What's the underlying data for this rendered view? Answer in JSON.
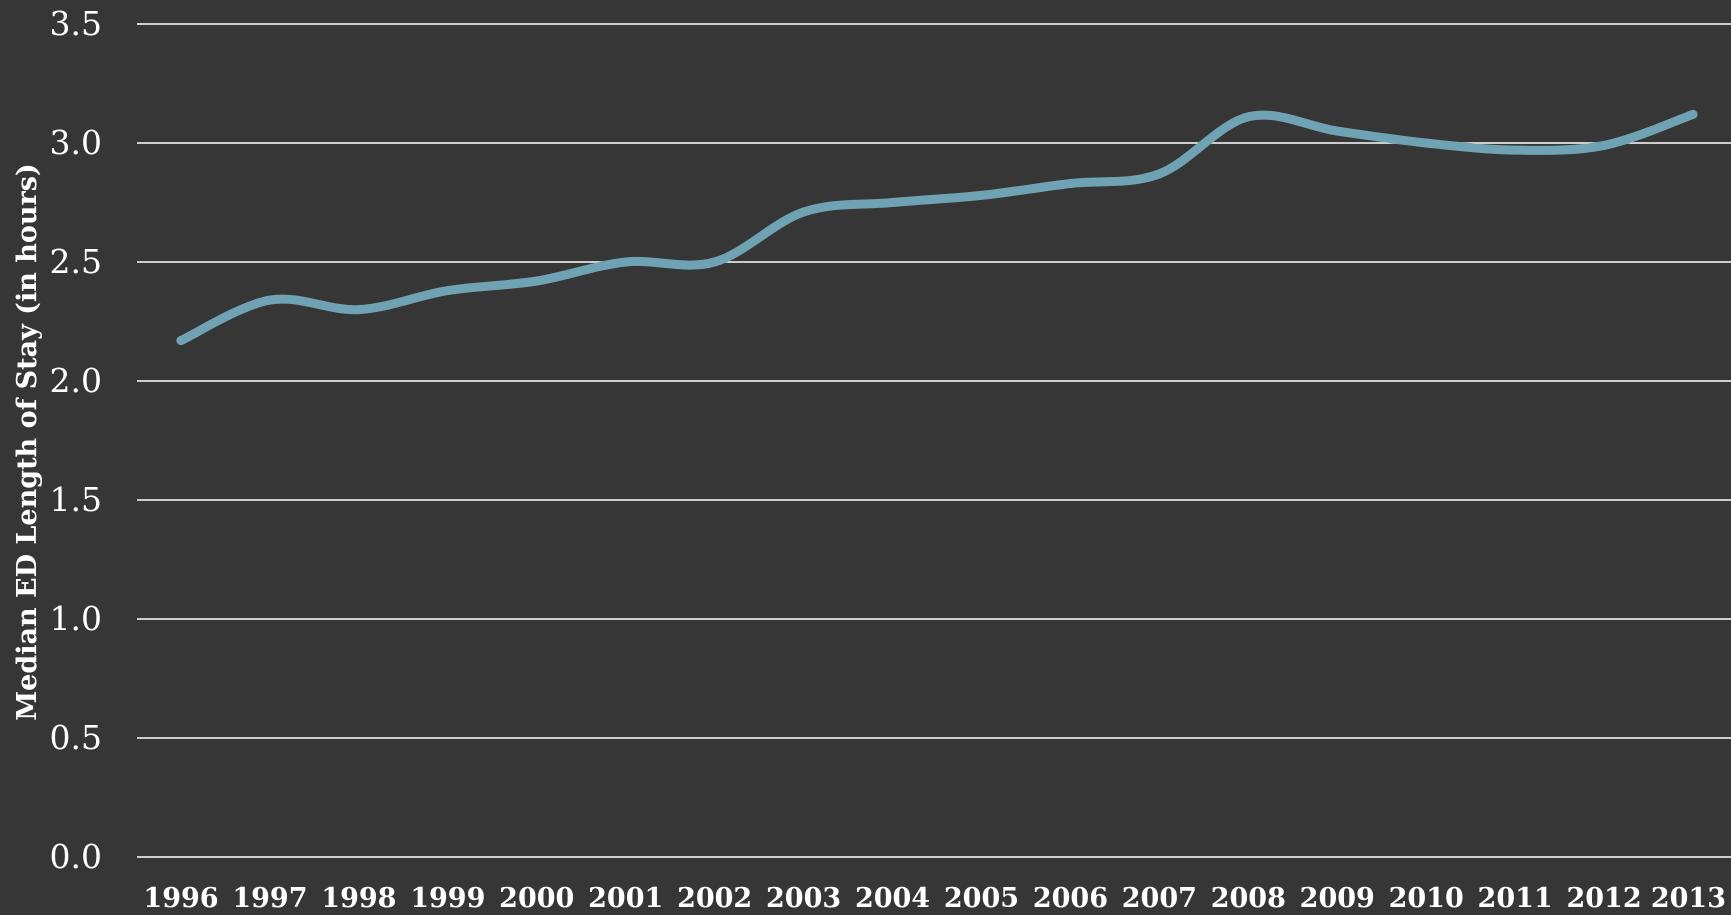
{
  "chart_data": {
    "type": "line",
    "title": "",
    "xlabel": "",
    "ylabel": "Median ED Length of Stay (in hours)",
    "categories": [
      "1996",
      "1997",
      "1998",
      "1999",
      "2000",
      "2001",
      "2002",
      "2003",
      "2004",
      "2005",
      "2006",
      "2007",
      "2008",
      "2009",
      "2010",
      "2011",
      "2012",
      "2013"
    ],
    "series": [
      {
        "values": [
          2.17,
          2.34,
          2.3,
          2.38,
          2.42,
          2.5,
          2.5,
          2.71,
          2.75,
          2.78,
          2.83,
          2.87,
          3.11,
          3.05,
          3.0,
          2.97,
          2.99,
          3.12
        ],
        "color": "#6fa3b3"
      }
    ],
    "yticks": [
      "0.0",
      "0.5",
      "1.0",
      "1.5",
      "2.0",
      "2.5",
      "3.0",
      "3.5"
    ],
    "ylim": [
      0,
      3.5
    ],
    "grid": true,
    "legend": "none"
  },
  "colors": {
    "background": "#363636",
    "gridline": "#ffffff",
    "text": "#ffffff",
    "line": "#6fa3b3"
  }
}
